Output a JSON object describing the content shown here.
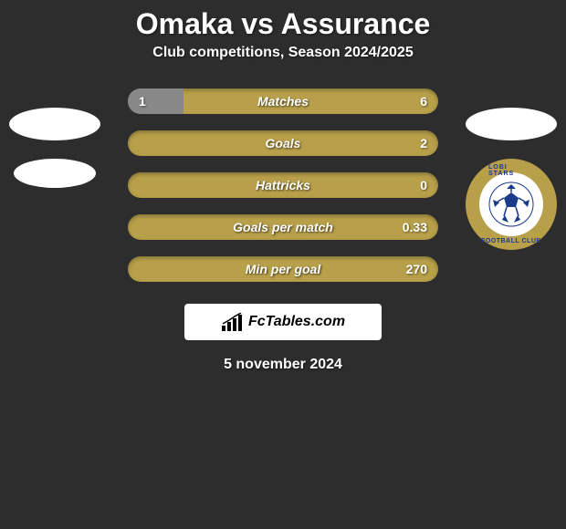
{
  "header": {
    "title": "Omaka vs Assurance",
    "subtitle": "Club competitions, Season 2024/2025"
  },
  "stats": [
    {
      "label": "Matches",
      "left_value": "1",
      "right_value": "6",
      "left_pct": 18,
      "bar_color": "#b8a04a",
      "fill_color": "#888888"
    },
    {
      "label": "Goals",
      "left_value": "",
      "right_value": "2",
      "left_pct": 0,
      "bar_color": "#b8a04a",
      "fill_color": "#888888"
    },
    {
      "label": "Hattricks",
      "left_value": "",
      "right_value": "0",
      "left_pct": 0,
      "bar_color": "#b8a04a",
      "fill_color": "#888888"
    },
    {
      "label": "Goals per match",
      "left_value": "",
      "right_value": "0.33",
      "left_pct": 0,
      "bar_color": "#b8a04a",
      "fill_color": "#888888"
    },
    {
      "label": "Min per goal",
      "left_value": "",
      "right_value": "270",
      "left_pct": 0,
      "bar_color": "#b8a04a",
      "fill_color": "#888888"
    }
  ],
  "colors": {
    "background": "#2d2d2d",
    "text": "#ffffff",
    "bar_bg": "#b8a04a",
    "bar_fill": "#888888",
    "badge_gold": "#b8a04a",
    "badge_blue": "#1a3a8a",
    "logo_bg": "#ffffff"
  },
  "club_badge": {
    "text_top": "LOBI STARS",
    "text_bottom": "FOOTBALL CLUB"
  },
  "logo": {
    "text": "FcTables.com"
  },
  "footer": {
    "date": "5 november 2024"
  }
}
